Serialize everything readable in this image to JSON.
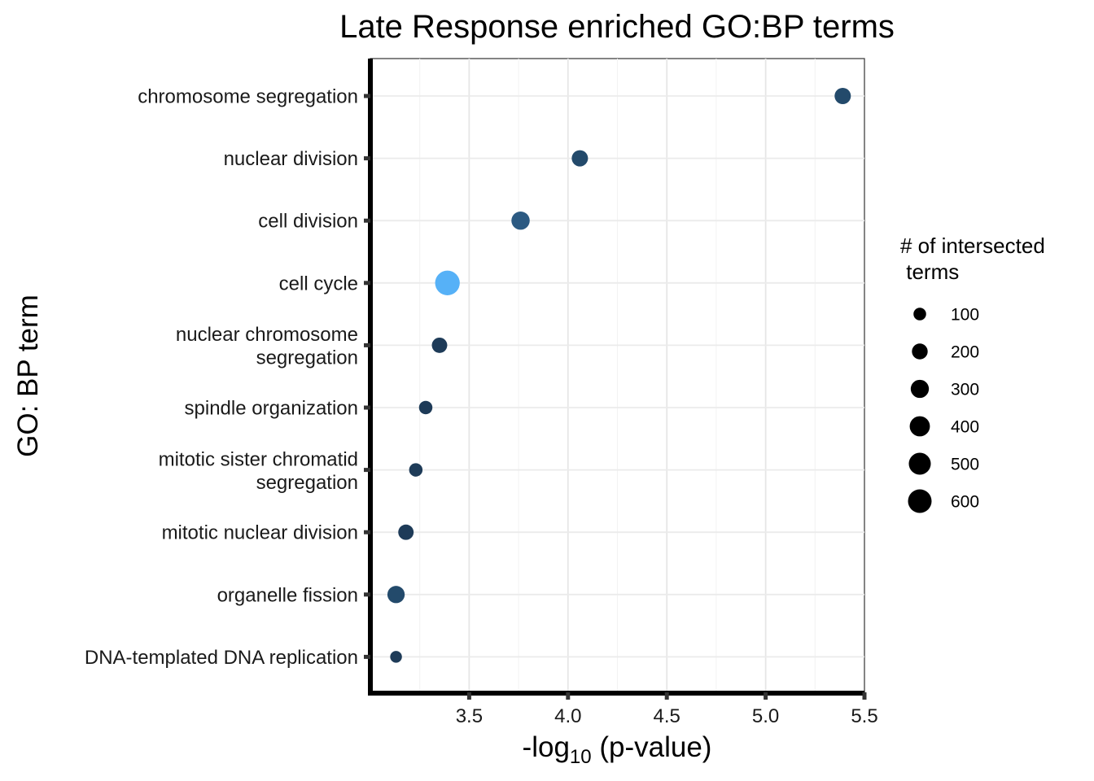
{
  "chart_data": {
    "type": "scatter",
    "title": "Late Response enriched GO:BP terms",
    "xlabel_parts": [
      "-log",
      "10",
      " (p-value)"
    ],
    "ylabel": "GO: BP term",
    "xlim": [
      3.0,
      5.5
    ],
    "xticks": [
      3.5,
      4.0,
      4.5,
      5.0,
      5.5
    ],
    "xtick_labels": [
      "3.5",
      "4.0",
      "4.5",
      "5.0",
      "5.5"
    ],
    "grid": true,
    "legend": {
      "title_lines": [
        "# of intersected",
        " terms"
      ],
      "position": "right",
      "sizes": [
        100,
        200,
        300,
        400,
        500,
        600
      ],
      "labels": [
        "100",
        "200",
        "300",
        "400",
        "500",
        "600"
      ]
    },
    "points": [
      {
        "term_lines": [
          "chromosome segregation"
        ],
        "x": 5.39,
        "size": 200,
        "color": "#234A6B"
      },
      {
        "term_lines": [
          "nuclear division"
        ],
        "x": 4.06,
        "size": 200,
        "color": "#234A6B"
      },
      {
        "term_lines": [
          "cell division"
        ],
        "x": 3.76,
        "size": 280,
        "color": "#2C5A82"
      },
      {
        "term_lines": [
          "cell cycle"
        ],
        "x": 3.39,
        "size": 620,
        "color": "#56B1F7"
      },
      {
        "term_lines": [
          "nuclear chromosome",
          "segregation"
        ],
        "x": 3.35,
        "size": 170,
        "color": "#1E3B58"
      },
      {
        "term_lines": [
          "spindle organization"
        ],
        "x": 3.28,
        "size": 110,
        "color": "#1E3B58"
      },
      {
        "term_lines": [
          "mitotic sister chromatid",
          "segregation"
        ],
        "x": 3.23,
        "size": 110,
        "color": "#1E3B58"
      },
      {
        "term_lines": [
          "mitotic nuclear division"
        ],
        "x": 3.18,
        "size": 170,
        "color": "#1E3B58"
      },
      {
        "term_lines": [
          "organelle fission"
        ],
        "x": 3.13,
        "size": 240,
        "color": "#234A6B"
      },
      {
        "term_lines": [
          "DNA-templated DNA replication"
        ],
        "x": 3.13,
        "size": 70,
        "color": "#1E3B58"
      }
    ]
  }
}
